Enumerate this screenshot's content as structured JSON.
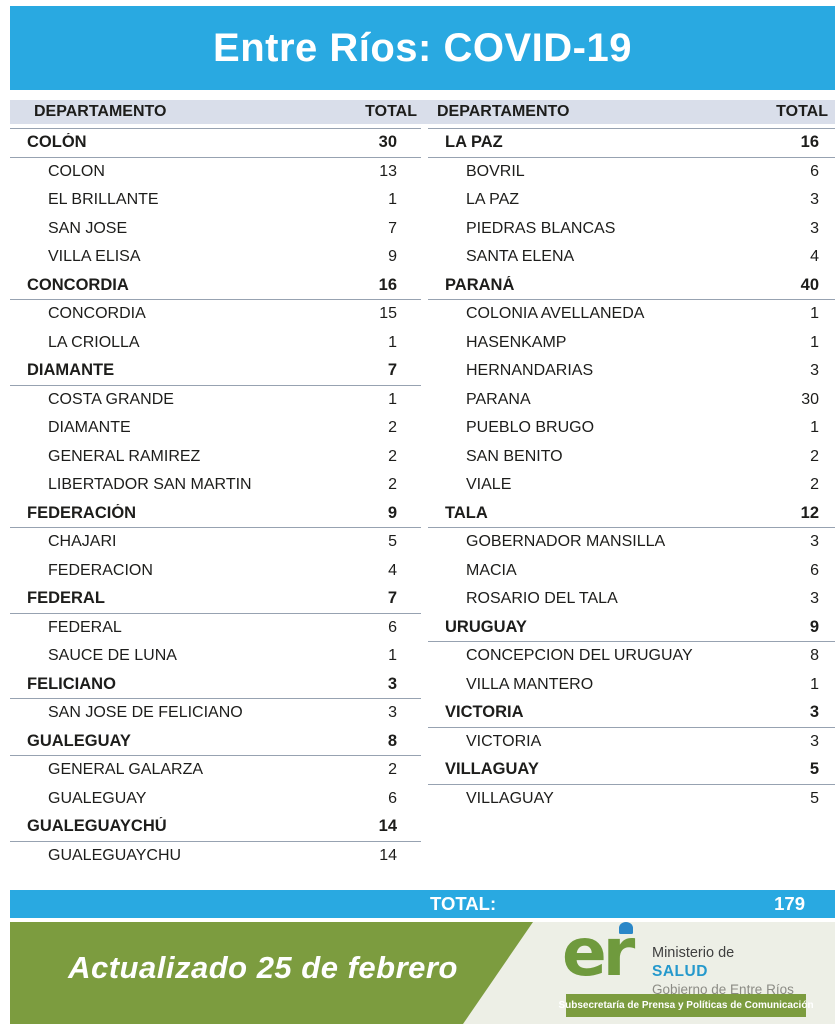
{
  "title": "Entre Ríos: COVID-19",
  "colors": {
    "accent_cyan": "#29a9e1",
    "header_band": "#d9deea",
    "banner_green": "#7c9c3f",
    "footer_bg": "#edefe6",
    "salud_blue": "#2599cc"
  },
  "table_header": {
    "department": "DEPARTAMENTO",
    "total": "TOTAL"
  },
  "chart_data": {
    "type": "table",
    "title": "Entre Ríos: COVID-19",
    "columns": [
      "DEPARTAMENTO",
      "TOTAL"
    ],
    "left_column": [
      {
        "name": "COLÓN",
        "total": 30,
        "localities": [
          {
            "name": "COLON",
            "total": 13
          },
          {
            "name": "EL BRILLANTE",
            "total": 1
          },
          {
            "name": "SAN JOSE",
            "total": 7
          },
          {
            "name": "VILLA ELISA",
            "total": 9
          }
        ]
      },
      {
        "name": "CONCORDIA",
        "total": 16,
        "localities": [
          {
            "name": "CONCORDIA",
            "total": 15
          },
          {
            "name": "LA CRIOLLA",
            "total": 1
          }
        ]
      },
      {
        "name": "DIAMANTE",
        "total": 7,
        "localities": [
          {
            "name": "COSTA GRANDE",
            "total": 1
          },
          {
            "name": "DIAMANTE",
            "total": 2
          },
          {
            "name": "GENERAL RAMIREZ",
            "total": 2
          },
          {
            "name": "LIBERTADOR SAN MARTIN",
            "total": 2
          }
        ]
      },
      {
        "name": "FEDERACIÓN",
        "total": 9,
        "localities": [
          {
            "name": "CHAJARI",
            "total": 5
          },
          {
            "name": "FEDERACION",
            "total": 4
          }
        ]
      },
      {
        "name": "FEDERAL",
        "total": 7,
        "localities": [
          {
            "name": "FEDERAL",
            "total": 6
          },
          {
            "name": "SAUCE DE LUNA",
            "total": 1
          }
        ]
      },
      {
        "name": "FELICIANO",
        "total": 3,
        "localities": [
          {
            "name": "SAN JOSE DE FELICIANO",
            "total": 3
          }
        ]
      },
      {
        "name": "GUALEGUAY",
        "total": 8,
        "localities": [
          {
            "name": "GENERAL GALARZA",
            "total": 2
          },
          {
            "name": "GUALEGUAY",
            "total": 6
          }
        ]
      },
      {
        "name": "GUALEGUAYCHÚ",
        "total": 14,
        "localities": [
          {
            "name": "GUALEGUAYCHU",
            "total": 14
          }
        ]
      }
    ],
    "right_column": [
      {
        "name": "LA PAZ",
        "total": 16,
        "localities": [
          {
            "name": "BOVRIL",
            "total": 6
          },
          {
            "name": "LA PAZ",
            "total": 3
          },
          {
            "name": "PIEDRAS BLANCAS",
            "total": 3
          },
          {
            "name": "SANTA ELENA",
            "total": 4
          }
        ]
      },
      {
        "name": "PARANÁ",
        "total": 40,
        "localities": [
          {
            "name": "COLONIA AVELLANEDA",
            "total": 1
          },
          {
            "name": "HASENKAMP",
            "total": 1
          },
          {
            "name": "HERNANDARIAS",
            "total": 3
          },
          {
            "name": "PARANA",
            "total": 30
          },
          {
            "name": "PUEBLO BRUGO",
            "total": 1
          },
          {
            "name": "SAN BENITO",
            "total": 2
          },
          {
            "name": "VIALE",
            "total": 2
          }
        ]
      },
      {
        "name": "TALA",
        "total": 12,
        "localities": [
          {
            "name": "GOBERNADOR MANSILLA",
            "total": 3
          },
          {
            "name": "MACIA",
            "total": 6
          },
          {
            "name": "ROSARIO DEL TALA",
            "total": 3
          }
        ]
      },
      {
        "name": "URUGUAY",
        "total": 9,
        "localities": [
          {
            "name": "CONCEPCION DEL URUGUAY",
            "total": 8
          },
          {
            "name": "VILLA MANTERO",
            "total": 1
          }
        ]
      },
      {
        "name": "VICTORIA",
        "total": 3,
        "localities": [
          {
            "name": "VICTORIA",
            "total": 3
          }
        ]
      },
      {
        "name": "VILLAGUAY",
        "total": 5,
        "localities": [
          {
            "name": "VILLAGUAY",
            "total": 5
          }
        ]
      }
    ]
  },
  "grand_total": {
    "label": "TOTAL:",
    "value": "179"
  },
  "footer": {
    "updated": "Actualizado 25 de febrero",
    "logo_er": "er",
    "ministry_line1": "Ministerio de",
    "ministry_line2": "SALUD",
    "ministry_line3": "Gobierno de Entre Ríos",
    "press_badge": "Subsecretaría de Prensa y Políticas de Comunicación"
  }
}
